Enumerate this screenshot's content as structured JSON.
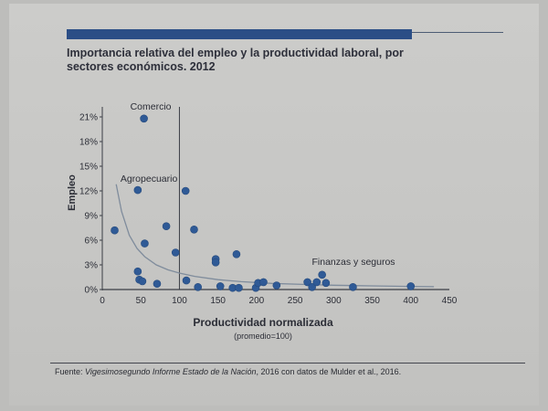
{
  "title": "Importancia relativa del empleo y la productividad laboral, por sectores económicos. 2012",
  "source": {
    "prefix": "Fuente: ",
    "italic": "Vigesimosegundo Informe Estado de la Nación",
    "suffix": ", 2016 con datos de Mulder et al., 2016."
  },
  "colors": {
    "bar": "#2b4e86",
    "point": "#2f5a96",
    "curve": "#7f8c9c",
    "axis": "#3a3d45"
  },
  "chart_data": {
    "type": "scatter",
    "xlabel": "Productividad normalizada",
    "xlabel_sub": "(promedio=100)",
    "ylabel": "Empleo",
    "xlim": [
      0,
      450
    ],
    "ylim": [
      0,
      22
    ],
    "x_ticks": [
      0,
      50,
      100,
      150,
      200,
      250,
      300,
      350,
      400,
      450
    ],
    "y_ticks": [
      0,
      3,
      6,
      9,
      12,
      15,
      18,
      21
    ],
    "y_tick_labels": [
      "0%",
      "3%",
      "6%",
      "9%",
      "12%",
      "15%",
      "18%",
      "21%"
    ],
    "reference_line_x": 100,
    "annotations": [
      {
        "text": "Comercio",
        "x": 54,
        "y": 21
      },
      {
        "text": "Agropecuario",
        "x": 46,
        "y": 12
      },
      {
        "text": "Finanzas y seguros",
        "x": 286,
        "y": 2
      }
    ],
    "points": [
      {
        "x": 16,
        "y": 7.2
      },
      {
        "x": 54,
        "y": 20.8
      },
      {
        "x": 46,
        "y": 12.1
      },
      {
        "x": 55,
        "y": 5.6
      },
      {
        "x": 46,
        "y": 2.2
      },
      {
        "x": 48,
        "y": 1.2
      },
      {
        "x": 52,
        "y": 1.0
      },
      {
        "x": 71,
        "y": 0.7
      },
      {
        "x": 83,
        "y": 7.7
      },
      {
        "x": 95,
        "y": 4.5
      },
      {
        "x": 108,
        "y": 12.0
      },
      {
        "x": 119,
        "y": 7.3
      },
      {
        "x": 109,
        "y": 1.1
      },
      {
        "x": 124,
        "y": 0.3
      },
      {
        "x": 147,
        "y": 3.7
      },
      {
        "x": 147,
        "y": 3.3
      },
      {
        "x": 153,
        "y": 0.4
      },
      {
        "x": 174,
        "y": 4.3
      },
      {
        "x": 169,
        "y": 0.2
      },
      {
        "x": 177,
        "y": 0.2
      },
      {
        "x": 199,
        "y": 0.2
      },
      {
        "x": 202,
        "y": 0.8
      },
      {
        "x": 209,
        "y": 0.9
      },
      {
        "x": 226,
        "y": 0.5
      },
      {
        "x": 266,
        "y": 0.9
      },
      {
        "x": 272,
        "y": 0.3
      },
      {
        "x": 278,
        "y": 0.9
      },
      {
        "x": 285,
        "y": 1.8
      },
      {
        "x": 290,
        "y": 0.8
      },
      {
        "x": 325,
        "y": 0.3
      },
      {
        "x": 400,
        "y": 0.4
      }
    ],
    "trend_curve": [
      [
        18,
        12.8
      ],
      [
        25,
        9.5
      ],
      [
        35,
        6.6
      ],
      [
        45,
        5.0
      ],
      [
        55,
        4.0
      ],
      [
        70,
        3.0
      ],
      [
        85,
        2.4
      ],
      [
        100,
        2.0
      ],
      [
        120,
        1.6
      ],
      [
        150,
        1.2
      ],
      [
        180,
        0.95
      ],
      [
        220,
        0.75
      ],
      [
        260,
        0.62
      ],
      [
        300,
        0.52
      ],
      [
        350,
        0.44
      ],
      [
        400,
        0.38
      ],
      [
        430,
        0.35
      ]
    ]
  }
}
